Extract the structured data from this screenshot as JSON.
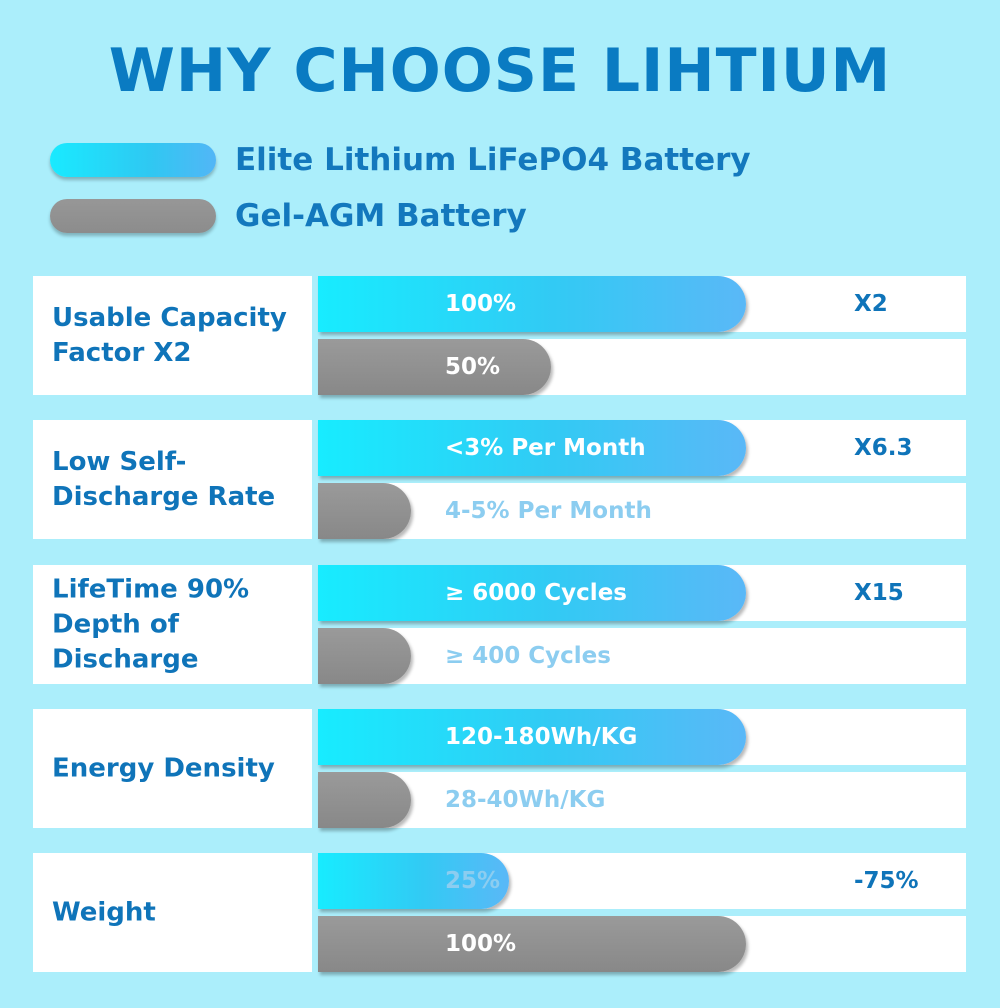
{
  "title": "WHY CHOOSE LIHTIUM",
  "legend": {
    "lithium": "Elite Lithium LiFePO4 Battery",
    "gel": "Gel-AGM Battery"
  },
  "colors": {
    "background": "#abeefb",
    "accent_text": "#0f74b9",
    "lithium_bar": "#2fd3f6",
    "gel_bar": "#8f8f8f",
    "muted_text": "#8ccdf0"
  },
  "chart_data": {
    "type": "bar",
    "title": "WHY CHOOSE LIHTIUM",
    "series_names": [
      "Elite Lithium LiFePO4 Battery",
      "Gel-AGM Battery"
    ],
    "rows": [
      {
        "label": "Usable Capacity\nFactor X2",
        "lithium": {
          "text": "100%",
          "fill": 0.66
        },
        "gel": {
          "text": "50%",
          "fill": 0.36
        },
        "ratio": "X2"
      },
      {
        "label": "Low Self-\nDischarge Rate",
        "lithium": {
          "text": "<3% Per Month",
          "fill": 0.66
        },
        "gel": {
          "text": "4-5% Per Month",
          "fill": 0.143
        },
        "ratio": "X6.3"
      },
      {
        "label": "LifeTime 90%\nDepth of\nDischarge",
        "lithium": {
          "text": "≥ 6000 Cycles",
          "fill": 0.66
        },
        "gel": {
          "text": "≥ 400 Cycles",
          "fill": 0.143
        },
        "ratio": "X15"
      },
      {
        "label": "Energy Density",
        "lithium": {
          "text": "120-180Wh/KG",
          "fill": 0.66
        },
        "gel": {
          "text": "28-40Wh/KG",
          "fill": 0.143
        },
        "ratio": ""
      },
      {
        "label": "Weight",
        "lithium": {
          "text": "25%",
          "fill": 0.295
        },
        "gel": {
          "text": "100%",
          "fill": 0.66
        },
        "ratio": "-75%"
      }
    ]
  }
}
